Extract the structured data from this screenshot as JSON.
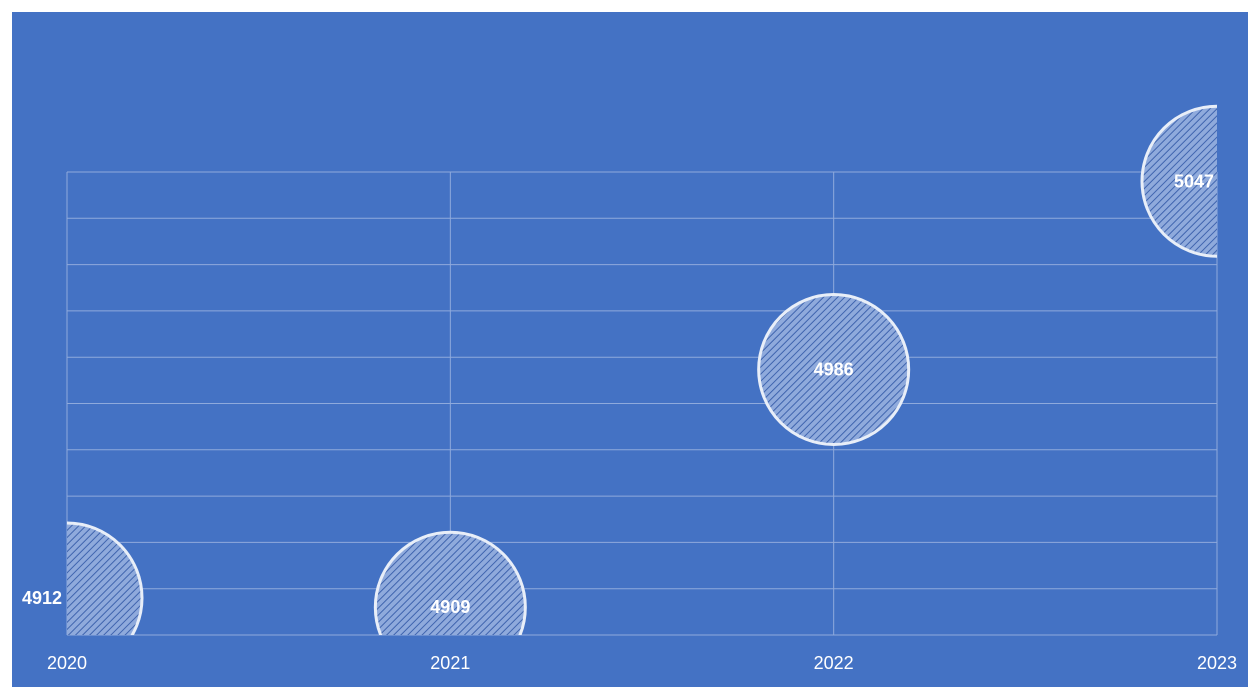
{
  "chart_data": {
    "type": "scatter",
    "title": "",
    "xlabel": "",
    "ylabel": "",
    "categories": [
      "2020",
      "2021",
      "2022",
      "2023"
    ],
    "x": [
      2020,
      2021,
      2022,
      2023
    ],
    "values": [
      4912,
      4909,
      4986,
      5047
    ],
    "ylim": [
      4900,
      5050
    ],
    "xlim": [
      2020,
      2023
    ],
    "grid": true,
    "marker": "circle",
    "marker_fill": "hatched light blue",
    "marker_stroke": "#E8EEF8",
    "background_color": "#4472C4",
    "gridline_color": "#8FAADC",
    "text_color": "#FFFFFF",
    "legend": "none"
  }
}
